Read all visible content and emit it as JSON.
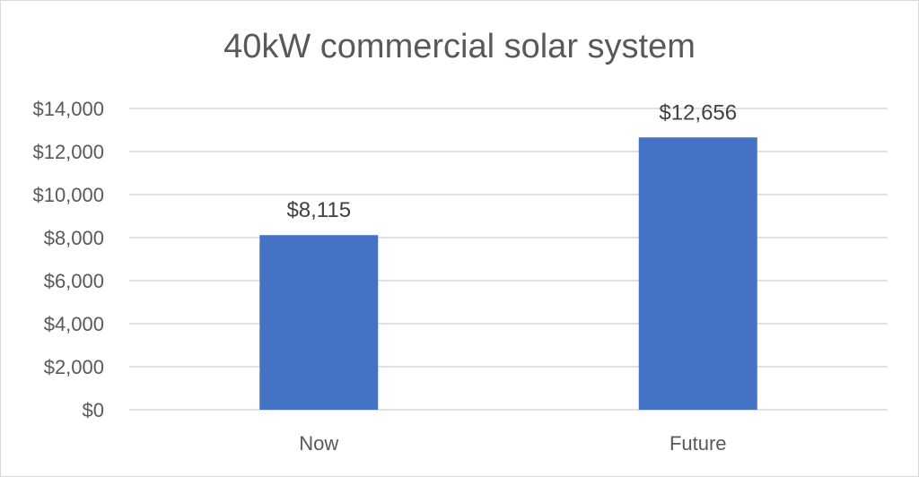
{
  "chart_data": {
    "type": "bar",
    "title": "40kW commercial solar system",
    "xlabel": "",
    "ylabel": "",
    "categories": [
      "Now",
      "Future"
    ],
    "values": [
      8115,
      12656
    ],
    "data_labels": [
      "$8,115",
      "$12,656"
    ],
    "ylim": [
      0,
      14000
    ],
    "yticks": [
      0,
      2000,
      4000,
      6000,
      8000,
      10000,
      12000,
      14000
    ],
    "ytick_labels": [
      "$0",
      "$2,000",
      "$4,000",
      "$6,000",
      "$8,000",
      "$10,000",
      "$12,000",
      "$14,000"
    ],
    "grid": true,
    "legend": "none",
    "bar_color": "#4472c4",
    "grid_color": "#d9d9d9"
  }
}
